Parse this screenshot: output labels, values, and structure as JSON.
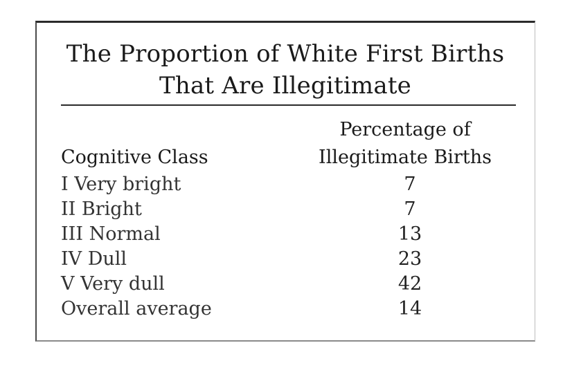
{
  "chart_data": {
    "type": "table",
    "title": "The Proportion of White First Births That Are Illegitimate",
    "title_lines": [
      "The Proportion of White First Births",
      "That Are Illegitimate"
    ],
    "columns": [
      "Cognitive Class",
      "Percentage of Illegitimate Births"
    ],
    "column2_lines": [
      "Percentage of",
      "Illegitimate Births"
    ],
    "rows": [
      {
        "cls": "I Very bright",
        "value": "7"
      },
      {
        "cls": "II Bright",
        "value": "7"
      },
      {
        "cls": "III Normal",
        "value": "13"
      },
      {
        "cls": "IV Dull",
        "value": "23"
      },
      {
        "cls": "V Very dull",
        "value": "42"
      },
      {
        "cls": "Overall average",
        "value": "14"
      }
    ]
  }
}
